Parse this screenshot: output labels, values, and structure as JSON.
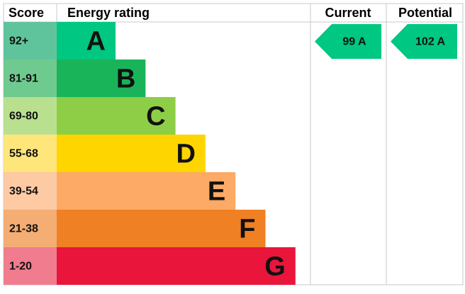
{
  "header": {
    "score": "Score",
    "rating": "Energy rating",
    "current": "Current",
    "potential": "Potential"
  },
  "bands": [
    {
      "score": "92+",
      "letter": "A",
      "color": "#00c781",
      "score_color": "#5fc49c"
    },
    {
      "score": "81-91",
      "letter": "B",
      "color": "#19b459",
      "score_color": "#6fca8f"
    },
    {
      "score": "69-80",
      "letter": "C",
      "color": "#8dce46",
      "score_color": "#b9e08f"
    },
    {
      "score": "55-68",
      "letter": "D",
      "color": "#ffd500",
      "score_color": "#ffe67a"
    },
    {
      "score": "39-54",
      "letter": "E",
      "color": "#fcaa65",
      "score_color": "#fdcaa3"
    },
    {
      "score": "21-38",
      "letter": "F",
      "color": "#ef8023",
      "score_color": "#f4ad73"
    },
    {
      "score": "1-20",
      "letter": "G",
      "color": "#e9153b",
      "score_color": "#f07c8e"
    }
  ],
  "current": {
    "text": "99 A",
    "color": "#00c781"
  },
  "potential": {
    "text": "102 A",
    "color": "#00c781"
  }
}
